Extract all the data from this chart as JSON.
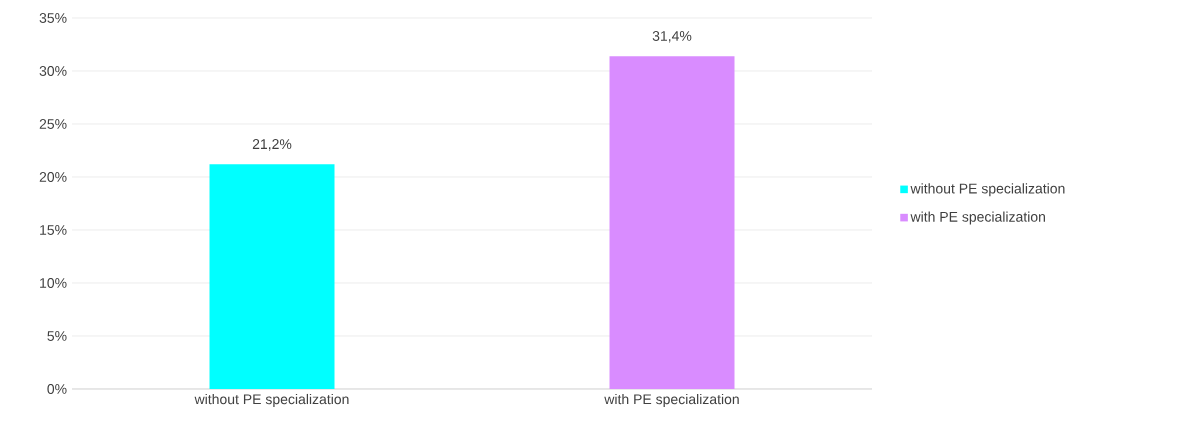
{
  "chart_data": {
    "type": "bar",
    "categories": [
      "without PE specialization",
      "with PE specialization"
    ],
    "series": [
      {
        "name": "without PE specialization",
        "color": "#00ffff",
        "values": [
          21.2,
          null
        ],
        "value_labels": [
          "21,2%",
          null
        ]
      },
      {
        "name": "with PE specialization",
        "color": "#d98cff",
        "values": [
          null,
          31.4
        ],
        "value_labels": [
          null,
          "31,4%"
        ]
      }
    ],
    "ylim": [
      0,
      35
    ],
    "yticks": [
      {
        "value": 0,
        "label": "0%"
      },
      {
        "value": 5,
        "label": "5%"
      },
      {
        "value": 10,
        "label": "10%"
      },
      {
        "value": 15,
        "label": "15%"
      },
      {
        "value": 20,
        "label": "20%"
      },
      {
        "value": 25,
        "label": "25%"
      },
      {
        "value": 30,
        "label": "30%"
      },
      {
        "value": 35,
        "label": "35%"
      }
    ],
    "grid": "y",
    "legend": "right"
  }
}
